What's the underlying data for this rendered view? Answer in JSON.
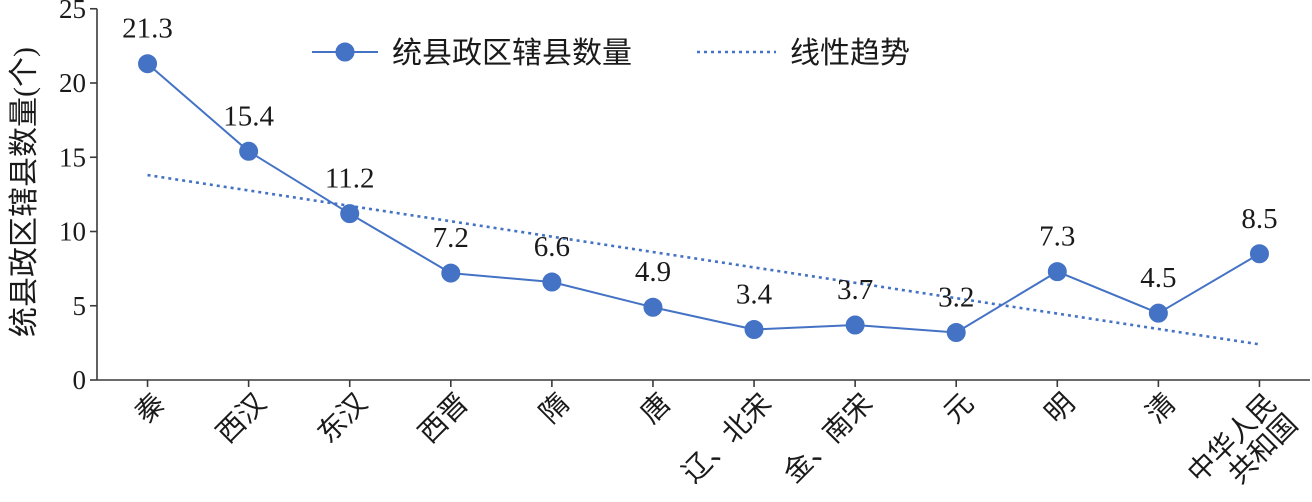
{
  "chart_data": {
    "type": "line",
    "ylabel": "统县政区辖县数量(个)",
    "ylim": [
      0,
      25
    ],
    "yticks": [
      0,
      5,
      10,
      15,
      20,
      25
    ],
    "categories": [
      "秦",
      "西汉",
      "东汉",
      "西晋",
      "隋",
      "唐",
      "辽、北宋",
      "金、南宋",
      "元",
      "明",
      "清",
      "中华人民共和国"
    ],
    "series": [
      {
        "name": "统县政区辖县数量",
        "values": [
          21.3,
          15.4,
          11.2,
          7.2,
          6.6,
          4.9,
          3.4,
          3.7,
          3.2,
          7.3,
          4.5,
          8.5
        ],
        "color": "#4472C4",
        "marker": "circle",
        "data_labels": true
      }
    ],
    "trendline": {
      "name": "线性趋势",
      "type": "linear",
      "style": "dotted",
      "color": "#4472C4"
    },
    "legend": "top",
    "grid": false
  }
}
